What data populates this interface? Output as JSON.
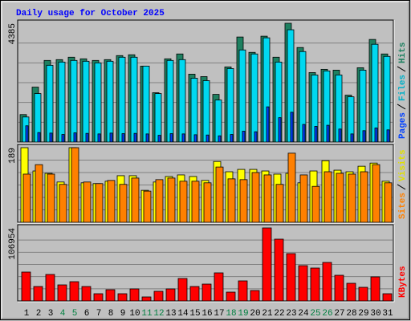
{
  "title": "Daily usage for October 2025",
  "categories": [
    "1",
    "2",
    "3",
    "4",
    "5",
    "6",
    "7",
    "8",
    "9",
    "10",
    "11",
    "12",
    "13",
    "14",
    "15",
    "16",
    "17",
    "18",
    "19",
    "20",
    "21",
    "22",
    "23",
    "24",
    "25",
    "26",
    "27",
    "28",
    "29",
    "30",
    "31"
  ],
  "category_colors": [
    "#000000",
    "#000000",
    "#000000",
    "#008040",
    "#008040",
    "#000000",
    "#000000",
    "#000000",
    "#000000",
    "#000000",
    "#008040",
    "#008040",
    "#000000",
    "#000000",
    "#000000",
    "#000000",
    "#000000",
    "#008040",
    "#008040",
    "#000000",
    "#000000",
    "#000000",
    "#000000",
    "#000000",
    "#008040",
    "#008040",
    "#000000",
    "#000000",
    "#000000",
    "#000000",
    "#000000"
  ],
  "chart_data": [
    {
      "type": "bar",
      "ylim": [
        0,
        4385
      ],
      "yticks": [
        4385
      ],
      "series": [
        {
          "name": "Hits",
          "color": "#1e8060",
          "values": [
            1014,
            2028,
            3013,
            3043,
            3132,
            3073,
            3013,
            3043,
            3192,
            3222,
            2804,
            1820,
            3073,
            3252,
            2506,
            2416,
            1760,
            2774,
            3878,
            3311,
            3908,
            3132,
            4385,
            3490,
            2565,
            2685,
            2655,
            1730,
            2744,
            3788,
            3252
          ]
        },
        {
          "name": "Files",
          "color": "#00d8f0",
          "values": [
            925,
            1790,
            2834,
            2953,
            3013,
            2983,
            2923,
            2983,
            3132,
            3132,
            2804,
            1790,
            3013,
            3043,
            2357,
            2267,
            1551,
            2714,
            3401,
            3252,
            3848,
            2953,
            4146,
            3341,
            2476,
            2625,
            2476,
            1670,
            2655,
            3609,
            3162
          ]
        },
        {
          "name": "Pages",
          "color": "#0040ff",
          "values": [
            600,
            350,
            330,
            280,
            340,
            320,
            300,
            330,
            310,
            320,
            300,
            250,
            310,
            300,
            270,
            260,
            230,
            280,
            400,
            380,
            1300,
            900,
            1100,
            650,
            580,
            620,
            480,
            300,
            420,
            520,
            450
          ]
        }
      ]
    },
    {
      "type": "bar",
      "ylim": [
        0,
        189
      ],
      "yticks": [
        189
      ],
      "series": [
        {
          "name": "Visits",
          "color": "#ffff00",
          "values": [
            189,
            130,
            124,
            102,
            189,
            100,
            98,
            104,
            118,
            118,
            81,
            102,
            116,
            120,
            116,
            106,
            154,
            128,
            134,
            134,
            130,
            122,
            124,
            100,
            130,
            156,
            132,
            128,
            142,
            150,
            104
          ]
        },
        {
          "name": "Sites",
          "color": "#ff8000",
          "values": [
            122,
            146,
            122,
            96,
            189,
            102,
            98,
            106,
            96,
            112,
            79,
            108,
            112,
            104,
            104,
            100,
            140,
            110,
            108,
            126,
            120,
            96,
            175,
            120,
            91,
            128,
            124,
            122,
            128,
            146,
            100
          ]
        }
      ]
    },
    {
      "type": "bar",
      "ylim": [
        0,
        106954
      ],
      "yticks": [
        106954
      ],
      "series": [
        {
          "name": "KBytes",
          "color": "#ff0000",
          "values": [
            42311,
            21155,
            38785,
            23506,
            28207,
            21155,
            10578,
            16454,
            10578,
            17630,
            5876,
            14104,
            17630,
            32909,
            21155,
            24681,
            41136,
            12928,
            29382,
            15279,
            106954,
            90499,
            69344,
            51714,
            48188,
            56415,
            37610,
            25857,
            19980,
            35259,
            10578
          ]
        }
      ]
    }
  ]
}
